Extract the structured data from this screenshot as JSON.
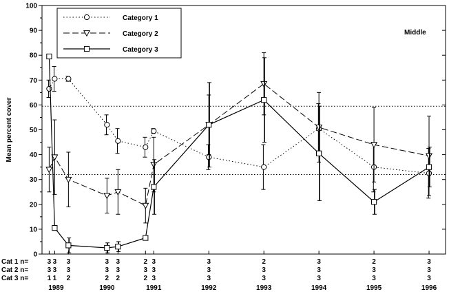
{
  "chart_data": {
    "type": "line",
    "ylabel": "Mean percent cover",
    "ylim": [
      0,
      100
    ],
    "yticks": [
      0,
      10,
      20,
      30,
      40,
      50,
      60,
      70,
      80,
      90,
      100
    ],
    "panel_label": "Middle",
    "reference_lines": [
      59.5,
      32
    ],
    "series": [
      {
        "name": "Category 1",
        "style": "dotted",
        "marker": "circle",
        "points": [
          {
            "x": 1989.1,
            "y": 66.5,
            "err": 3.5
          },
          {
            "x": 1989.2,
            "y": 70.5,
            "err": 5
          },
          {
            "x": 1989.45,
            "y": 70.5,
            "err": 1
          },
          {
            "x": 1990.15,
            "y": 52,
            "err": 4
          },
          {
            "x": 1990.35,
            "y": 45.5,
            "err": 5
          },
          {
            "x": 1990.85,
            "y": 43,
            "err": 4
          },
          {
            "x": 1991.0,
            "y": 49.5,
            "err": 1
          },
          {
            "x": 1992.0,
            "y": 39,
            "err": 5
          },
          {
            "x": 1993.0,
            "y": 35,
            "err": 9
          },
          {
            "x": 1994.0,
            "y": 50.5,
            "err": 10
          },
          {
            "x": 1995.0,
            "y": 35,
            "err": 10
          },
          {
            "x": 1996.0,
            "y": 32.5,
            "err": 10
          }
        ]
      },
      {
        "name": "Category 2",
        "style": "dashed",
        "marker": "triangle-down",
        "points": [
          {
            "x": 1989.1,
            "y": 34,
            "err": 9
          },
          {
            "x": 1989.2,
            "y": 39,
            "err": 15
          },
          {
            "x": 1989.45,
            "y": 30,
            "err": 11
          },
          {
            "x": 1990.15,
            "y": 23.5,
            "err": 7
          },
          {
            "x": 1990.35,
            "y": 25,
            "err": 9
          },
          {
            "x": 1990.85,
            "y": 19.5,
            "err": 7
          },
          {
            "x": 1991.0,
            "y": 36,
            "err": 11
          },
          {
            "x": 1992.0,
            "y": 52,
            "err": 12
          },
          {
            "x": 1993.0,
            "y": 68.5,
            "err": 12.5
          },
          {
            "x": 1994.0,
            "y": 51,
            "err": 14
          },
          {
            "x": 1995.0,
            "y": 44,
            "err": 15
          },
          {
            "x": 1996.0,
            "y": 39.5,
            "err": 16
          }
        ]
      },
      {
        "name": "Category 3",
        "style": "solid",
        "marker": "square",
        "points": [
          {
            "x": 1989.1,
            "y": 79.5,
            "err": 0
          },
          {
            "x": 1989.2,
            "y": 10.5,
            "err": 0
          },
          {
            "x": 1989.45,
            "y": 3.5,
            "err": 3
          },
          {
            "x": 1990.15,
            "y": 2.5,
            "err": 2
          },
          {
            "x": 1990.35,
            "y": 3,
            "err": 2
          },
          {
            "x": 1990.85,
            "y": 6.5,
            "err": 0
          },
          {
            "x": 1991.0,
            "y": 27,
            "err": 11
          },
          {
            "x": 1992.0,
            "y": 52,
            "err": 17
          },
          {
            "x": 1993.0,
            "y": 62,
            "err": 17
          },
          {
            "x": 1994.0,
            "y": 40.5,
            "err": 19
          },
          {
            "x": 1995.0,
            "y": 21,
            "err": 5
          },
          {
            "x": 1996.0,
            "y": 35,
            "err": 8
          }
        ]
      }
    ],
    "sample_sizes": {
      "row_labels": [
        "Cat 1 n=",
        "Cat 2 n=",
        "Cat 3 n="
      ],
      "columns": [
        {
          "x": 1989.1,
          "n": [
            "3",
            "3",
            "1"
          ]
        },
        {
          "x": 1989.2,
          "n": [
            "3",
            "3",
            "1"
          ]
        },
        {
          "x": 1989.45,
          "n": [
            "3",
            "3",
            "2"
          ]
        },
        {
          "x": 1990.15,
          "n": [
            "3",
            "3",
            "2"
          ]
        },
        {
          "x": 1990.35,
          "n": [
            "3",
            "3",
            "2"
          ]
        },
        {
          "x": 1990.85,
          "n": [
            "2",
            "3",
            "2"
          ]
        },
        {
          "x": 1991.0,
          "n": [
            "3",
            "3",
            "3"
          ]
        },
        {
          "x": 1992.0,
          "n": [
            "3",
            "3",
            "3"
          ]
        },
        {
          "x": 1993.0,
          "n": [
            "2",
            "3",
            "3"
          ]
        },
        {
          "x": 1994.0,
          "n": [
            "3",
            "3",
            "3"
          ]
        },
        {
          "x": 1995.0,
          "n": [
            "2",
            "3",
            "3"
          ]
        },
        {
          "x": 1996.0,
          "n": [
            "3",
            "3",
            "3"
          ]
        }
      ]
    },
    "year_labels": [
      {
        "x": 1989.1,
        "label": "1989"
      },
      {
        "x": 1990.15,
        "label": "1990"
      },
      {
        "x": 1991.0,
        "label": "1991"
      },
      {
        "x": 1992.0,
        "label": "1992"
      },
      {
        "x": 1993.0,
        "label": "1993"
      },
      {
        "x": 1994.0,
        "label": "1994"
      },
      {
        "x": 1995.0,
        "label": "1995"
      },
      {
        "x": 1996.0,
        "label": "1996"
      }
    ],
    "xlim": [
      1988.97,
      1996.3
    ]
  }
}
